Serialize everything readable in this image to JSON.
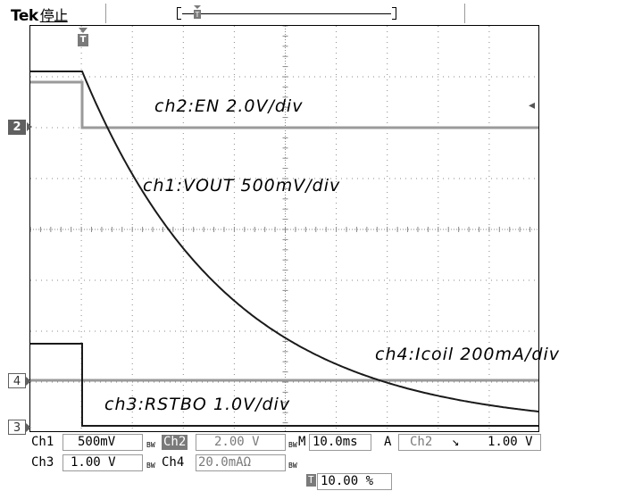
{
  "header": {
    "brand": "Tek",
    "state": "停止"
  },
  "trace_labels": {
    "ch2": "ch2:EN 2.0V/div",
    "ch1": "ch1:VOUT 500mV/div",
    "ch4": "ch4:Icoil 200mA/div",
    "ch3": "ch3:RSTBO 1.0V/div"
  },
  "markers": {
    "ch2": "2",
    "ch4": "4",
    "ch3": "3",
    "trigger": "T"
  },
  "status": {
    "ch1_label": "Ch1",
    "ch1_scale": "500mV",
    "ch2_label": "Ch2",
    "ch2_scale": "2.00 V",
    "ch3_label": "Ch3",
    "ch3_scale": "1.00 V",
    "ch4_label": "Ch4",
    "ch4_scale": "20.0mAΩ",
    "timebase_label": "M",
    "timebase": "10.0ms",
    "trigger_mode": "A",
    "trigger_source": "Ch2",
    "trigger_slope": "↘",
    "trigger_level": "1.00 V",
    "trigger_position": "10.00 %",
    "bw_mark": "BW"
  },
  "colors": {
    "trace_dark": "#1a1a1a",
    "trace_gray": "#9a9a9a",
    "grid": "#8a8a8a"
  }
}
